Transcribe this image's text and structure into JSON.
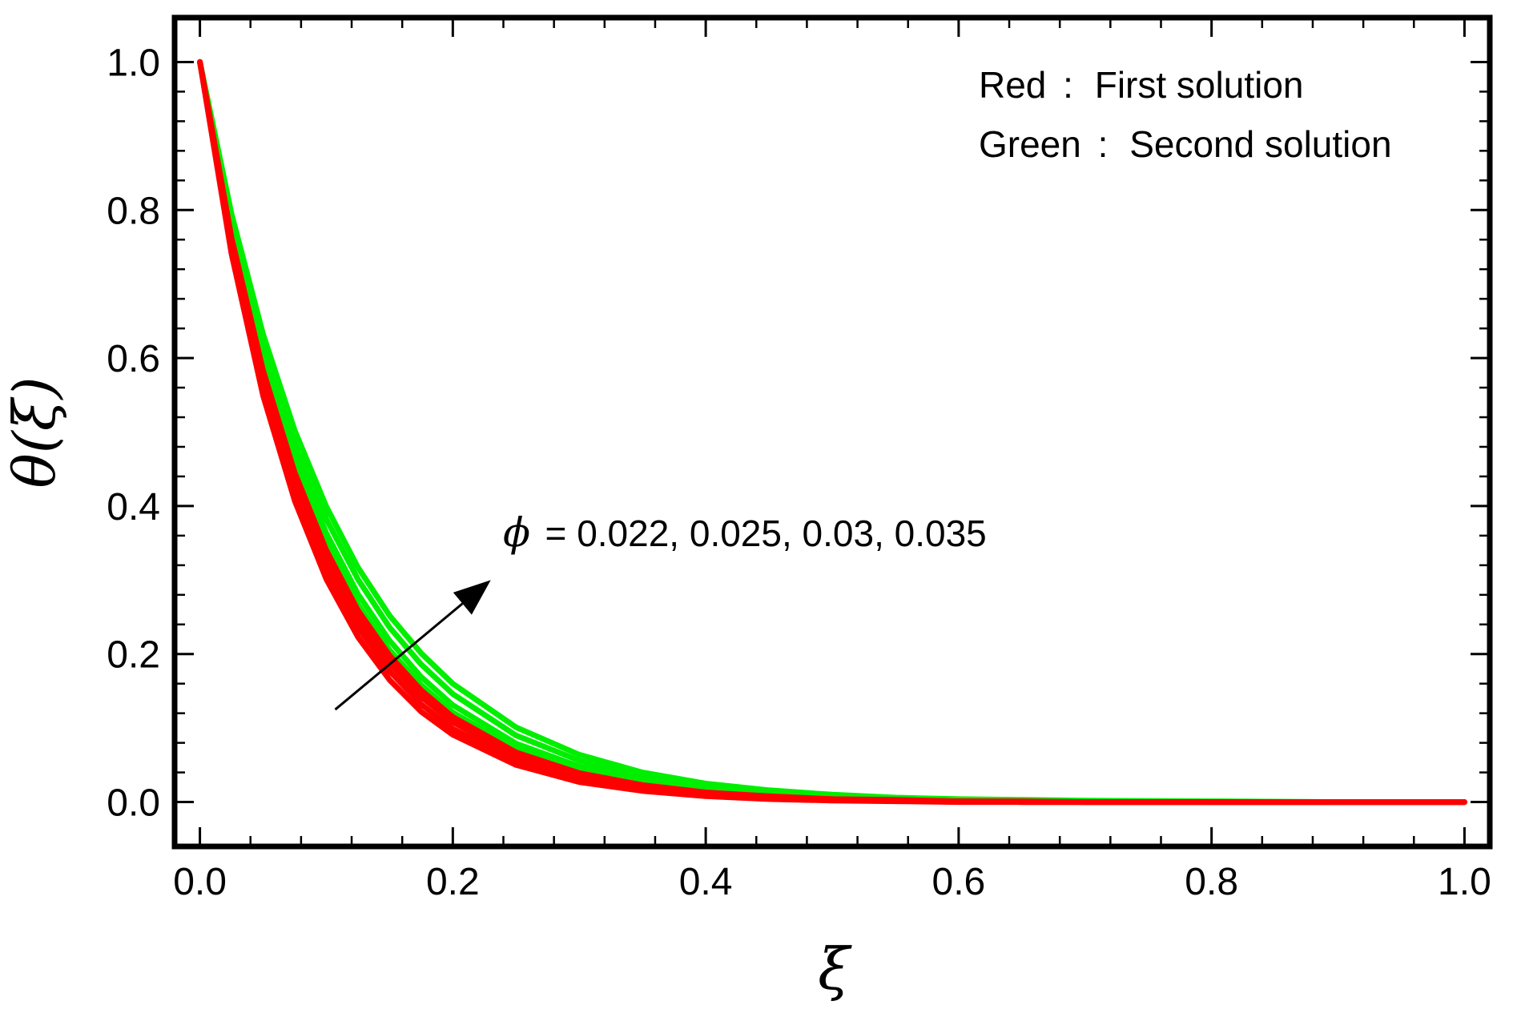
{
  "chart_data": {
    "type": "line",
    "xlabel": "ξ",
    "ylabel": "θ(ξ)",
    "xlim": [
      -0.02,
      1.02
    ],
    "ylim": [
      -0.06,
      1.06
    ],
    "x_ticks": [
      0.0,
      0.2,
      0.4,
      0.6,
      0.8,
      1.0
    ],
    "x_tick_labels": [
      "0.0",
      "0.2",
      "0.4",
      "0.6",
      "0.8",
      "1.0"
    ],
    "y_ticks": [
      0.0,
      0.2,
      0.4,
      0.6,
      0.8,
      1.0
    ],
    "y_tick_labels": [
      "0.0",
      "0.2",
      "0.4",
      "0.6",
      "0.8",
      "1.0"
    ],
    "minor_ticks_per_major": 4,
    "grid": false,
    "legend_lines": [
      {
        "color_word": "Red",
        "sep": ":",
        "text": "First solution"
      },
      {
        "color_word": "Green",
        "sep": ":",
        "text": "Second solution"
      }
    ],
    "legend_position": "top-right",
    "annotation": {
      "symbol": "ϕ",
      "text": "= 0.022, 0.025, 0.03, 0.035",
      "arrow_from": [
        0.107,
        0.125
      ],
      "arrow_to": [
        0.23,
        0.3
      ]
    },
    "colors": {
      "first": "#ff0000",
      "second": "#00ee00"
    },
    "x": [
      0.0,
      0.025,
      0.05,
      0.075,
      0.1,
      0.125,
      0.15,
      0.175,
      0.2,
      0.25,
      0.3,
      0.35,
      0.4,
      0.45,
      0.5,
      0.55,
      0.6,
      0.65,
      0.7,
      0.8,
      0.9,
      1.0
    ],
    "series": [
      {
        "group": "Second solution",
        "color": "#00ee00",
        "values": [
          1.0,
          0.768,
          0.59,
          0.453,
          0.348,
          0.267,
          0.205,
          0.158,
          0.121,
          0.072,
          0.042,
          0.025,
          0.015,
          0.009,
          0.005,
          0.003,
          0.002,
          0.001,
          0.0,
          0.0,
          0.0,
          0.0
        ]
      },
      {
        "group": "Second solution",
        "color": "#00ee00",
        "values": [
          1.0,
          0.776,
          0.602,
          0.467,
          0.363,
          0.281,
          0.218,
          0.169,
          0.131,
          0.079,
          0.048,
          0.029,
          0.017,
          0.01,
          0.006,
          0.004,
          0.002,
          0.001,
          0.0,
          0.0,
          0.0,
          0.0
        ]
      },
      {
        "group": "Second solution",
        "color": "#00ee00",
        "values": [
          1.0,
          0.786,
          0.618,
          0.486,
          0.382,
          0.301,
          0.236,
          0.186,
          0.146,
          0.09,
          0.056,
          0.034,
          0.021,
          0.013,
          0.008,
          0.005,
          0.003,
          0.002,
          0.001,
          0.0,
          0.0,
          0.0
        ]
      },
      {
        "group": "Second solution",
        "color": "#00ee00",
        "values": [
          1.0,
          0.795,
          0.632,
          0.502,
          0.399,
          0.317,
          0.252,
          0.201,
          0.16,
          0.101,
          0.064,
          0.04,
          0.025,
          0.016,
          0.01,
          0.006,
          0.004,
          0.003,
          0.002,
          0.001,
          0.0,
          0.0
        ]
      },
      {
        "group": "First solution",
        "color": "#ff0000",
        "values": [
          1.0,
          0.741,
          0.549,
          0.407,
          0.301,
          0.223,
          0.165,
          0.122,
          0.091,
          0.05,
          0.027,
          0.015,
          0.008,
          0.004,
          0.002,
          0.001,
          0.0,
          0.0,
          0.0,
          0.0,
          0.0,
          0.0
        ]
      },
      {
        "group": "First solution",
        "color": "#ff0000",
        "values": [
          1.0,
          0.749,
          0.561,
          0.42,
          0.315,
          0.236,
          0.177,
          0.132,
          0.099,
          0.056,
          0.031,
          0.018,
          0.01,
          0.005,
          0.003,
          0.002,
          0.001,
          0.0,
          0.0,
          0.0,
          0.0,
          0.0
        ]
      },
      {
        "group": "First solution",
        "color": "#ff0000",
        "values": [
          1.0,
          0.757,
          0.573,
          0.433,
          0.328,
          0.248,
          0.188,
          0.142,
          0.108,
          0.062,
          0.035,
          0.02,
          0.011,
          0.006,
          0.004,
          0.002,
          0.001,
          0.0,
          0.0,
          0.0,
          0.0,
          0.0
        ]
      },
      {
        "group": "First solution",
        "color": "#ff0000",
        "values": [
          1.0,
          0.763,
          0.583,
          0.445,
          0.34,
          0.259,
          0.198,
          0.151,
          0.115,
          0.067,
          0.039,
          0.023,
          0.013,
          0.008,
          0.004,
          0.003,
          0.001,
          0.001,
          0.0,
          0.0,
          0.0,
          0.0
        ]
      }
    ]
  }
}
